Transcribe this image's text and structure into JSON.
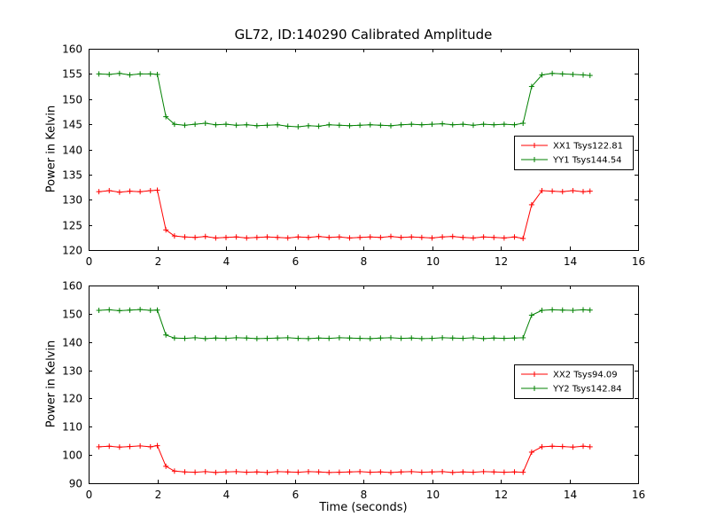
{
  "title": "GL72, ID:140290 Calibrated Amplitude",
  "axes": {
    "ylabel_top": "Power in Kelvin",
    "ylabel_bottom": "Power in Kelvin",
    "xlabel": "Time (seconds)"
  },
  "colors": {
    "xx": "#ff0000",
    "yy": "#008000",
    "frame": "#000000",
    "background": "#ffffff"
  },
  "chart_data": [
    {
      "type": "line",
      "marker": "+",
      "legend_position": "right-middle",
      "xlim": [
        0,
        16
      ],
      "ylim": [
        120,
        160
      ],
      "xticks": [
        0,
        2,
        4,
        6,
        8,
        10,
        12,
        14,
        16
      ],
      "yticks": [
        120,
        125,
        130,
        135,
        140,
        145,
        150,
        155,
        160
      ],
      "x": [
        0.3,
        0.6,
        0.9,
        1.2,
        1.5,
        1.8,
        2.0,
        2.25,
        2.5,
        2.8,
        3.1,
        3.4,
        3.7,
        4.0,
        4.3,
        4.6,
        4.9,
        5.2,
        5.5,
        5.8,
        6.1,
        6.4,
        6.7,
        7.0,
        7.3,
        7.6,
        7.9,
        8.2,
        8.5,
        8.8,
        9.1,
        9.4,
        9.7,
        10.0,
        10.3,
        10.6,
        10.9,
        11.2,
        11.5,
        11.8,
        12.1,
        12.4,
        12.65,
        12.9,
        13.2,
        13.5,
        13.8,
        14.1,
        14.4,
        14.6
      ],
      "series": [
        {
          "name": "XX1 Tsys122.81",
          "color": "#ff0000",
          "values": [
            131.6,
            131.8,
            131.5,
            131.7,
            131.6,
            131.8,
            131.9,
            124.0,
            122.8,
            122.6,
            122.5,
            122.7,
            122.4,
            122.5,
            122.6,
            122.4,
            122.5,
            122.6,
            122.5,
            122.4,
            122.6,
            122.5,
            122.7,
            122.5,
            122.6,
            122.4,
            122.5,
            122.6,
            122.5,
            122.7,
            122.5,
            122.6,
            122.5,
            122.4,
            122.6,
            122.7,
            122.5,
            122.4,
            122.6,
            122.5,
            122.4,
            122.6,
            122.3,
            129.0,
            131.8,
            131.7,
            131.6,
            131.8,
            131.6,
            131.7
          ]
        },
        {
          "name": "YY1 Tsys144.54",
          "color": "#008000",
          "values": [
            155.0,
            154.9,
            155.1,
            154.8,
            155.0,
            155.0,
            154.9,
            146.5,
            145.0,
            144.8,
            145.0,
            145.2,
            144.9,
            145.0,
            144.8,
            144.9,
            144.7,
            144.8,
            144.9,
            144.6,
            144.5,
            144.7,
            144.6,
            144.9,
            144.8,
            144.7,
            144.8,
            144.9,
            144.8,
            144.7,
            144.9,
            145.0,
            144.9,
            145.0,
            145.1,
            144.9,
            145.0,
            144.8,
            145.0,
            144.9,
            145.0,
            144.9,
            145.2,
            152.5,
            154.8,
            155.1,
            155.0,
            154.9,
            154.8,
            154.7
          ]
        }
      ]
    },
    {
      "type": "line",
      "marker": "+",
      "legend_position": "right-middle",
      "xlim": [
        0,
        16
      ],
      "ylim": [
        90,
        160
      ],
      "xticks": [
        0,
        2,
        4,
        6,
        8,
        10,
        12,
        14,
        16
      ],
      "yticks": [
        90,
        100,
        110,
        120,
        130,
        140,
        150,
        160
      ],
      "x": [
        0.3,
        0.6,
        0.9,
        1.2,
        1.5,
        1.8,
        2.0,
        2.25,
        2.5,
        2.8,
        3.1,
        3.4,
        3.7,
        4.0,
        4.3,
        4.6,
        4.9,
        5.2,
        5.5,
        5.8,
        6.1,
        6.4,
        6.7,
        7.0,
        7.3,
        7.6,
        7.9,
        8.2,
        8.5,
        8.8,
        9.1,
        9.4,
        9.7,
        10.0,
        10.3,
        10.6,
        10.9,
        11.2,
        11.5,
        11.8,
        12.1,
        12.4,
        12.65,
        12.9,
        13.2,
        13.5,
        13.8,
        14.1,
        14.4,
        14.6
      ],
      "series": [
        {
          "name": "XX2 Tsys94.09",
          "color": "#ff0000",
          "values": [
            102.9,
            103.1,
            102.8,
            103.0,
            103.2,
            102.9,
            103.3,
            96.0,
            94.3,
            94.0,
            93.9,
            94.1,
            93.8,
            94.0,
            94.1,
            93.9,
            94.0,
            93.8,
            94.1,
            94.0,
            93.9,
            94.1,
            94.0,
            93.8,
            93.9,
            94.0,
            94.1,
            93.9,
            94.0,
            93.8,
            94.0,
            94.1,
            93.9,
            94.0,
            94.1,
            93.8,
            94.0,
            93.9,
            94.1,
            94.0,
            93.9,
            94.0,
            93.9,
            101.0,
            102.9,
            103.1,
            103.0,
            102.8,
            103.1,
            102.9
          ]
        },
        {
          "name": "YY2 Tsys142.84",
          "color": "#008000",
          "values": [
            151.2,
            151.4,
            151.1,
            151.3,
            151.5,
            151.2,
            151.3,
            142.5,
            141.4,
            141.3,
            141.5,
            141.2,
            141.4,
            141.3,
            141.5,
            141.4,
            141.2,
            141.3,
            141.4,
            141.5,
            141.3,
            141.2,
            141.4,
            141.3,
            141.5,
            141.4,
            141.3,
            141.2,
            141.4,
            141.5,
            141.3,
            141.4,
            141.2,
            141.3,
            141.5,
            141.4,
            141.3,
            141.5,
            141.2,
            141.4,
            141.3,
            141.4,
            141.5,
            149.5,
            151.2,
            151.4,
            151.3,
            151.2,
            151.4,
            151.3
          ]
        }
      ]
    }
  ]
}
